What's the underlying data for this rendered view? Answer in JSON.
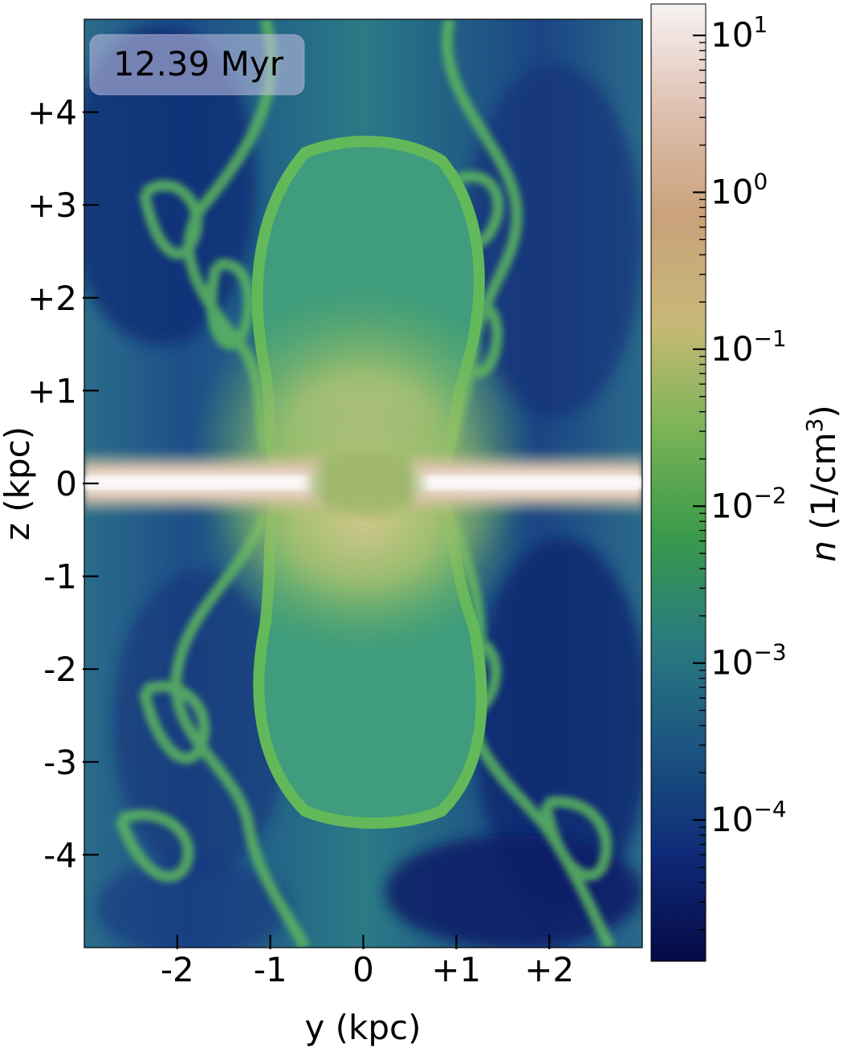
{
  "figure": {
    "time_label": "12.39 Myr",
    "x_axis": {
      "label": "y (kpc)",
      "ticks": [
        {
          "value": -2,
          "label": "-2"
        },
        {
          "value": -1,
          "label": "-1"
        },
        {
          "value": 0,
          "label": "0"
        },
        {
          "value": 1,
          "label": "+1"
        },
        {
          "value": 2,
          "label": "+2"
        }
      ],
      "range": [
        -3.0,
        3.0
      ]
    },
    "y_axis": {
      "label": "z (kpc)",
      "ticks": [
        {
          "value": 4,
          "label": "+4"
        },
        {
          "value": 3,
          "label": "+3"
        },
        {
          "value": 2,
          "label": "+2"
        },
        {
          "value": 1,
          "label": "+1"
        },
        {
          "value": 0,
          "label": "0"
        },
        {
          "value": -1,
          "label": "-1"
        },
        {
          "value": -2,
          "label": "-2"
        },
        {
          "value": -3,
          "label": "-3"
        },
        {
          "value": -4,
          "label": "-4"
        }
      ],
      "range": [
        -5.0,
        5.0
      ]
    },
    "colorbar": {
      "label_symbol": "n",
      "label_units": "(1/cm",
      "label_units_exp": "3",
      "label_units_close": ")",
      "scale": "log",
      "range_exp": [
        -4.9,
        1.2
      ],
      "ticks": [
        {
          "exp": 1,
          "base": "10",
          "sup": "1"
        },
        {
          "exp": 0,
          "base": "10",
          "sup": "0"
        },
        {
          "exp": -1,
          "base": "10",
          "sup": "−1"
        },
        {
          "exp": -2,
          "base": "10",
          "sup": "−2"
        },
        {
          "exp": -3,
          "base": "10",
          "sup": "−3"
        },
        {
          "exp": -4,
          "base": "10",
          "sup": "−4"
        }
      ],
      "colormap": [
        "#050a45",
        "#0f2a78",
        "#1b5480",
        "#2a7a80",
        "#3a9a4a",
        "#7bb357",
        "#c8b877",
        "#c9a27a",
        "#dfc0b0",
        "#f7f2f3"
      ]
    },
    "colors": {
      "background_far": "#1f4e86",
      "cavity": "#3d9a7a",
      "shell": "#55b25a",
      "disk": "#f0e6e6",
      "deep_void": "#0f2a74"
    }
  }
}
